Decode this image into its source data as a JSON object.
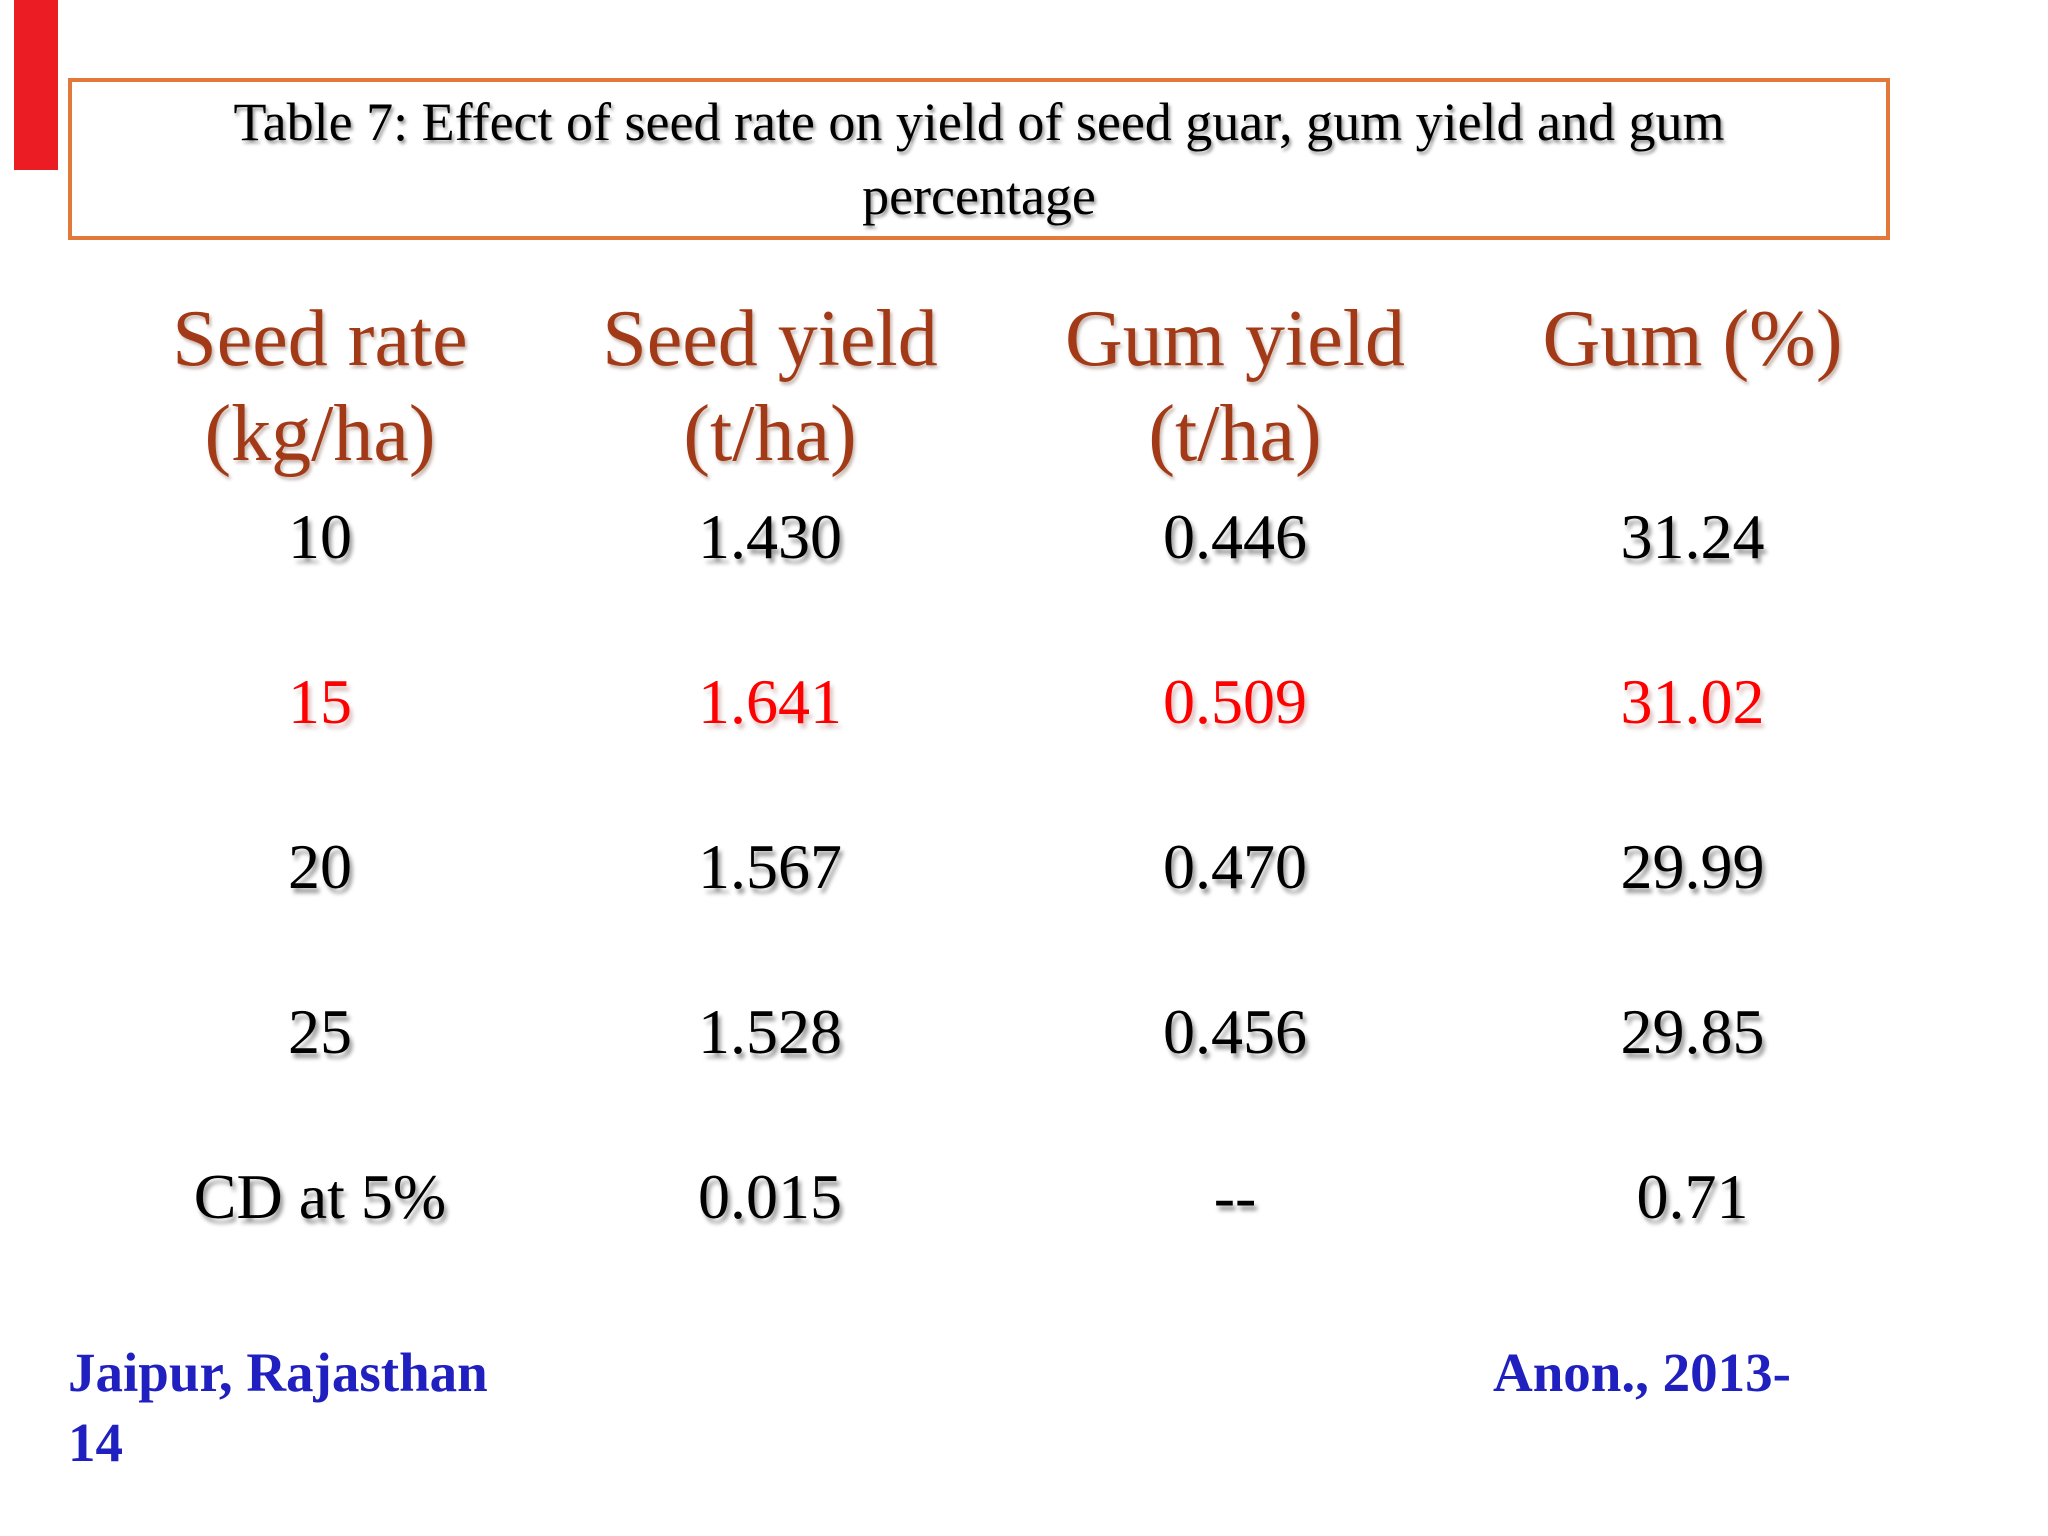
{
  "slide": {
    "title": {
      "line1": "Table 7: Effect of seed rate on yield of seed guar, gum yield and gum",
      "line2": "percentage"
    },
    "table": {
      "columns": [
        {
          "label_line1": "Seed rate",
          "label_line2": "(kg/ha)"
        },
        {
          "label_line1": "Seed yield",
          "label_line2": "(t/ha)"
        },
        {
          "label_line1": "Gum yield",
          "label_line2": "(t/ha)"
        },
        {
          "label_line1": "Gum (%)",
          "label_line2": ""
        }
      ],
      "rows": [
        {
          "seed_rate": "10",
          "seed_yield": "1.430",
          "gum_yield": "0.446",
          "gum_pct": "31.24",
          "emphasis": false
        },
        {
          "seed_rate": "15",
          "seed_yield": "1.641",
          "gum_yield": "0.509",
          "gum_pct": "31.02",
          "emphasis": true
        },
        {
          "seed_rate": "20",
          "seed_yield": "1.567",
          "gum_yield": "0.470",
          "gum_pct": "29.99",
          "emphasis": false
        },
        {
          "seed_rate": "25",
          "seed_yield": "1.528",
          "gum_yield": "0.456",
          "gum_pct": "29.85",
          "emphasis": false
        },
        {
          "seed_rate": "CD at 5%",
          "seed_yield": "0.015",
          "gum_yield": "--",
          "gum_pct": "0.71",
          "emphasis": false
        }
      ]
    },
    "footer": {
      "location_line1": "Jaipur, Rajasthan",
      "location_line2": "14",
      "citation": "Anon., 2013-"
    },
    "colors": {
      "title_border": "#E2793B",
      "header_text": "#A33A17",
      "emphasis_text": "#FF0000",
      "footer_text": "#2020C0",
      "body_text": "#000000",
      "accent_bar": "#EC1C24",
      "background": "#FFFFFF"
    }
  },
  "chart_data": {
    "type": "table",
    "title": "Table 7: Effect of seed rate on yield of seed guar, gum yield and gum percentage",
    "columns": [
      "Seed rate (kg/ha)",
      "Seed yield (t/ha)",
      "Gum yield (t/ha)",
      "Gum (%)"
    ],
    "rows": [
      [
        "10",
        "1.430",
        "0.446",
        "31.24"
      ],
      [
        "15",
        "1.641",
        "0.509",
        "31.02"
      ],
      [
        "20",
        "1.567",
        "0.470",
        "29.99"
      ],
      [
        "25",
        "1.528",
        "0.456",
        "29.85"
      ],
      [
        "CD at 5%",
        "0.015",
        "--",
        "0.71"
      ]
    ],
    "notes": "Row for seed rate 15 is highlighted in red; source Jaipur, Rajasthan; citation Anon., 2013-14"
  }
}
